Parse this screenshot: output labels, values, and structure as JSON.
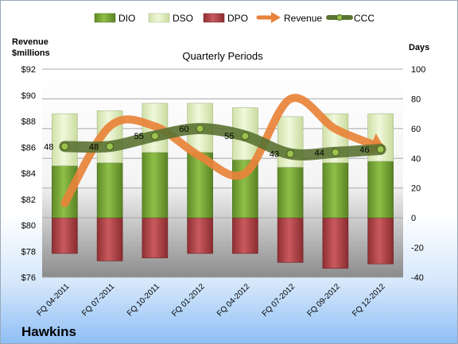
{
  "chart_data": {
    "type": "bar",
    "title": "Quarterly Periods",
    "company": "Hawkins",
    "y_left_label": [
      "Revenue",
      "$millions"
    ],
    "y_right_label": "Days",
    "y_left_range": [
      76,
      92
    ],
    "y_left_step": 2,
    "y_left_prefix": "$",
    "y_right_range": [
      -40,
      100
    ],
    "y_right_step": 20,
    "grid": true,
    "legend_position": "top",
    "categories": [
      "FQ 04-2011",
      "FQ 07-2011",
      "FQ 10-2011",
      "FQ 01-2012",
      "FQ 04-2012",
      "FQ 07-2012",
      "FQ 09-2012",
      "FQ 12-2012"
    ],
    "series": [
      {
        "name": "DIO",
        "type": "stacked-bar",
        "axis": "right",
        "color": "#7faa3c",
        "values": [
          35,
          37,
          44,
          44,
          39,
          34,
          37,
          38
        ]
      },
      {
        "name": "DSO",
        "type": "stacked-bar",
        "axis": "right",
        "color": "#e2efc4",
        "values": [
          35,
          35,
          33,
          33,
          35,
          34,
          33,
          32
        ]
      },
      {
        "name": "DPO",
        "type": "negative-bar",
        "axis": "right",
        "color": "#b5474b",
        "values": [
          -24,
          -29,
          -27,
          -24,
          -24,
          -30,
          -34,
          -31
        ]
      },
      {
        "name": "Revenue",
        "type": "line",
        "axis": "left",
        "color": "#e8833a",
        "values": [
          81.7,
          87.6,
          87.6,
          85.3,
          84.0,
          89.7,
          87.4,
          86.0
        ]
      },
      {
        "name": "CCC",
        "type": "line",
        "axis": "right",
        "color": "#5a7232",
        "values": [
          48,
          48,
          55,
          60,
          55,
          43,
          44,
          46
        ],
        "labels": [
          "48",
          "48",
          "55",
          "60",
          "55",
          "43",
          "44",
          "46"
        ]
      }
    ]
  }
}
